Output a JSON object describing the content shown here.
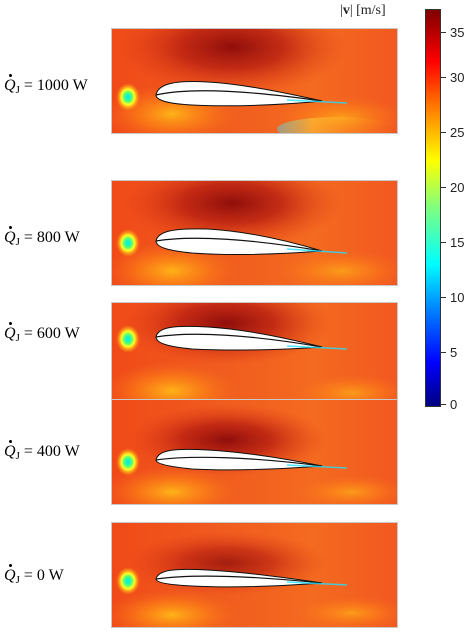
{
  "colorbar": {
    "title_pre": "|",
    "title_symbol": "v",
    "title_post": "| [m/s]",
    "ticks": [
      "35",
      "30",
      "25",
      "20",
      "15",
      "10",
      "5",
      "0"
    ],
    "min": 0,
    "max": 36.5
  },
  "panels": [
    {
      "q_symbol": "Q",
      "q_sub": "J",
      "q_value": " = 1000 W"
    },
    {
      "q_symbol": "Q",
      "q_sub": "J",
      "q_value": " = 800 W"
    },
    {
      "q_symbol": "Q",
      "q_sub": "J",
      "q_value": " = 600 W"
    },
    {
      "q_symbol": "Q",
      "q_sub": "J",
      "q_value": " = 400 W"
    },
    {
      "q_symbol": "Q",
      "q_sub": "J",
      "q_value": " = 0 W"
    }
  ],
  "colors": {
    "field_base": "#f05a1e",
    "field_dark": "#9a0d0d",
    "field_light": "#ff9a10",
    "stagnation": "#00e0ff"
  }
}
